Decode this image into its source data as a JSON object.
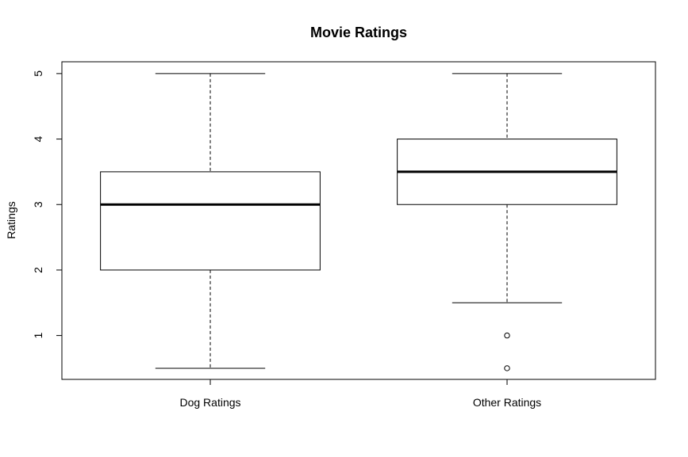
{
  "chart_data": {
    "type": "boxplot",
    "title": "Movie Ratings",
    "xlabel": "",
    "ylabel": "Ratings",
    "ylim": [
      0.33,
      5.18
    ],
    "yticks": [
      1,
      2,
      3,
      4,
      5
    ],
    "grid": false,
    "categories": [
      "Dog Ratings",
      "Other Ratings"
    ],
    "boxes": [
      {
        "category": "Dog Ratings",
        "whisker_low": 0.5,
        "q1": 2.0,
        "median": 3.0,
        "q3": 3.5,
        "whisker_high": 5.0,
        "outliers": []
      },
      {
        "category": "Other Ratings",
        "whisker_low": 1.5,
        "q1": 3.0,
        "median": 3.5,
        "q3": 4.0,
        "whisker_high": 5.0,
        "outliers": [
          1.0,
          0.5
        ]
      }
    ]
  }
}
